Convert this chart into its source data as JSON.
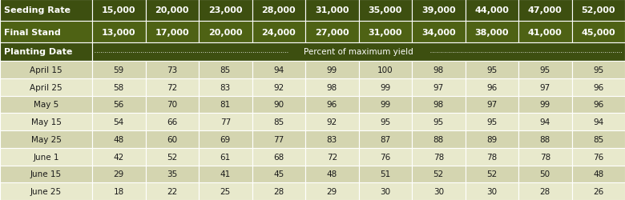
{
  "seeding_rates": [
    "15,000",
    "20,000",
    "23,000",
    "28,000",
    "31,000",
    "35,000",
    "39,000",
    "44,000",
    "47,000",
    "52,000"
  ],
  "final_stands": [
    "13,000",
    "17,000",
    "20,000",
    "24,000",
    "27,000",
    "31,000",
    "34,000",
    "38,000",
    "41,000",
    "45,000"
  ],
  "planting_dates": [
    "April 15",
    "April 25",
    "May 5",
    "May 15",
    "May 25",
    "June 1",
    "June 15",
    "June 25"
  ],
  "values": [
    [
      59,
      73,
      85,
      94,
      99,
      100,
      98,
      95,
      95,
      95
    ],
    [
      58,
      72,
      83,
      92,
      98,
      99,
      97,
      96,
      97,
      96
    ],
    [
      56,
      70,
      81,
      90,
      96,
      99,
      98,
      97,
      99,
      96
    ],
    [
      54,
      66,
      77,
      85,
      92,
      95,
      95,
      95,
      94,
      94
    ],
    [
      48,
      60,
      69,
      77,
      83,
      87,
      88,
      89,
      88,
      85
    ],
    [
      42,
      52,
      61,
      68,
      72,
      76,
      78,
      78,
      78,
      76
    ],
    [
      29,
      35,
      41,
      45,
      48,
      51,
      52,
      52,
      50,
      48
    ],
    [
      18,
      22,
      25,
      28,
      29,
      30,
      30,
      30,
      28,
      26
    ]
  ],
  "dark_header_bg": "#3d4f10",
  "mid_header_bg": "#4e6214",
  "header_text": "#ffffff",
  "row_bg_light": "#d4d5b0",
  "row_bg_lighter": "#e8e9cc",
  "data_text": "#1a1a1a",
  "border_color": "#ffffff",
  "outer_bg": "#3d4f10",
  "percent_label": "Percent of maximum yield",
  "fig_width": 7.8,
  "fig_height": 2.51,
  "dpi": 100
}
